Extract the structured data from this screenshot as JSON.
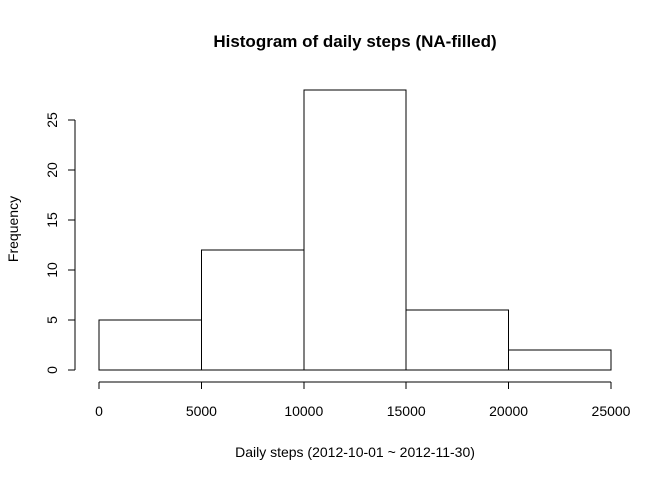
{
  "chart_data": {
    "type": "bar",
    "title": "Histogram of daily steps (NA-filled)",
    "xlabel": "Daily steps (2012-10-01 ~ 2012-11-30)",
    "ylabel": "Frequency",
    "bins": [
      {
        "from": 0,
        "to": 5000,
        "count": 5
      },
      {
        "from": 5000,
        "to": 10000,
        "count": 12
      },
      {
        "from": 10000,
        "to": 15000,
        "count": 28
      },
      {
        "from": 15000,
        "to": 20000,
        "count": 6
      },
      {
        "from": 20000,
        "to": 25000,
        "count": 2
      }
    ],
    "xlim": [
      0,
      25000
    ],
    "ylim": [
      0,
      28
    ],
    "xticks": [
      0,
      5000,
      10000,
      15000,
      20000,
      25000
    ],
    "xtick_labels": [
      "0",
      "5000",
      "10000",
      "15000",
      "20000",
      "25000"
    ],
    "yticks": [
      0,
      5,
      10,
      15,
      20,
      25
    ],
    "ytick_labels": [
      "0",
      "5",
      "10",
      "15",
      "20",
      "25"
    ],
    "bar_fill": "#ffffff",
    "bar_stroke": "#000000",
    "grid": false,
    "legend": "none"
  }
}
